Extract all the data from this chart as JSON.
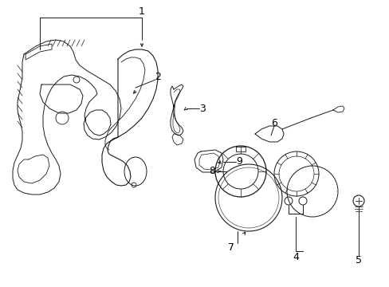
{
  "background_color": "#ffffff",
  "line_color": "#1a1a1a",
  "label_color": "#000000",
  "figsize": [
    4.89,
    3.6
  ],
  "dpi": 100,
  "xlim": [
    0,
    489
  ],
  "ylim": [
    0,
    360
  ]
}
